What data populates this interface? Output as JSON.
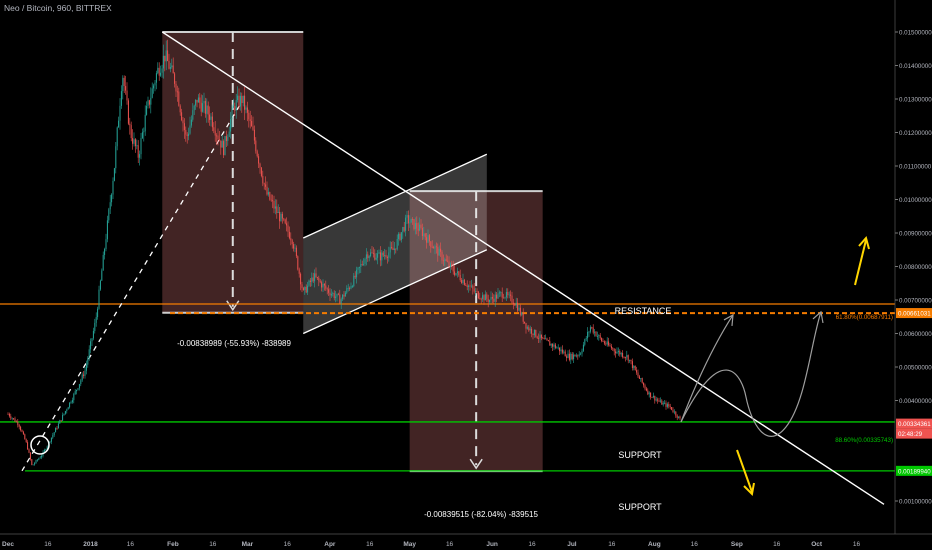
{
  "header": {
    "title": "Neo / Bitcoin, 960, BITTREX"
  },
  "colors": {
    "background": "#000000",
    "up": "#26a69a",
    "down": "#ef5350",
    "fib_line": "#f57c00",
    "support_line": "#00c800",
    "trend_line": "#ffffff",
    "arrow": "#ffd600",
    "projection": "#9e9e9e",
    "range_box": "#4e2a2a"
  },
  "chart_data": {
    "type": "candlestick",
    "symbol": "Neo / Bitcoin",
    "interval": "960",
    "exchange": "BITTREX",
    "x_ticks": [
      "Dec",
      "16",
      "2018",
      "16",
      "Feb",
      "16",
      "Mar",
      "16",
      "Apr",
      "16",
      "May",
      "16",
      "Jun",
      "16",
      "Jul",
      "16",
      "Aug",
      "16",
      "Sep",
      "16",
      "Oct",
      "16"
    ],
    "y_ticks": [
      "0.01500000",
      "0.01400000",
      "0.01300000",
      "0.01200000",
      "0.01100000",
      "0.01000000",
      "0.00900000",
      "0.00800000",
      "0.00700000",
      "0.00600000",
      "0.00500000",
      "0.00400000",
      "0.00100000"
    ],
    "price_labels": [
      {
        "text": "0.00661031",
        "color": "#f57c00"
      },
      {
        "text": "0.00334361",
        "color": "#ef5350"
      },
      {
        "text": "02:48:29",
        "color": "#ef5350"
      },
      {
        "text": "0.00189940",
        "color": "#00c800"
      }
    ],
    "price_path": [
      [
        "2017-12-01",
        0.0036
      ],
      [
        "2017-12-05",
        0.0033
      ],
      [
        "2017-12-08",
        0.0027
      ],
      [
        "2017-12-10",
        0.00205
      ],
      [
        "2017-12-14",
        0.0024
      ],
      [
        "2017-12-18",
        0.003
      ],
      [
        "2017-12-22",
        0.0036
      ],
      [
        "2017-12-26",
        0.0042
      ],
      [
        "2017-12-30",
        0.0049
      ],
      [
        "2018-01-03",
        0.0064
      ],
      [
        "2018-01-07",
        0.009
      ],
      [
        "2018-01-10",
        0.011
      ],
      [
        "2018-01-13",
        0.0138
      ],
      [
        "2018-01-16",
        0.012
      ],
      [
        "2018-01-19",
        0.0113
      ],
      [
        "2018-01-22",
        0.0126
      ],
      [
        "2018-01-26",
        0.0138
      ],
      [
        "2018-01-29",
        0.0143
      ],
      [
        "2018-02-02",
        0.0135
      ],
      [
        "2018-02-06",
        0.0118
      ],
      [
        "2018-02-10",
        0.013
      ],
      [
        "2018-02-15",
        0.0125
      ],
      [
        "2018-02-20",
        0.0115
      ],
      [
        "2018-02-24",
        0.0128
      ],
      [
        "2018-02-27",
        0.013
      ],
      [
        "2018-03-03",
        0.012
      ],
      [
        "2018-03-08",
        0.0102
      ],
      [
        "2018-03-13",
        0.0095
      ],
      [
        "2018-03-18",
        0.0088
      ],
      [
        "2018-03-22",
        0.0072
      ],
      [
        "2018-03-26",
        0.0077
      ],
      [
        "2018-03-31",
        0.0073
      ],
      [
        "2018-04-05",
        0.007
      ],
      [
        "2018-04-10",
        0.0076
      ],
      [
        "2018-04-15",
        0.0084
      ],
      [
        "2018-04-20",
        0.0083
      ],
      [
        "2018-04-25",
        0.0085
      ],
      [
        "2018-04-30",
        0.0094
      ],
      [
        "2018-05-05",
        0.0091
      ],
      [
        "2018-05-10",
        0.0086
      ],
      [
        "2018-05-16",
        0.008
      ],
      [
        "2018-05-21",
        0.0076
      ],
      [
        "2018-05-26",
        0.0072
      ],
      [
        "2018-05-31",
        0.007
      ],
      [
        "2018-06-05",
        0.0072
      ],
      [
        "2018-06-10",
        0.0069
      ],
      [
        "2018-06-14",
        0.0062
      ],
      [
        "2018-06-20",
        0.0058
      ],
      [
        "2018-06-25",
        0.0056
      ],
      [
        "2018-06-30",
        0.0053
      ],
      [
        "2018-07-04",
        0.0054
      ],
      [
        "2018-07-08",
        0.0062
      ],
      [
        "2018-07-12",
        0.0058
      ],
      [
        "2018-07-17",
        0.0055
      ],
      [
        "2018-07-22",
        0.0053
      ],
      [
        "2018-07-26",
        0.0047
      ],
      [
        "2018-07-30",
        0.0042
      ],
      [
        "2018-08-03",
        0.00395
      ],
      [
        "2018-08-07",
        0.0038
      ],
      [
        "2018-08-11",
        0.0034
      ]
    ],
    "annotations": [
      {
        "id": "range1",
        "text": "-0.00838989 (-55.93%) -838989"
      },
      {
        "id": "range2",
        "text": "-0.00839515 (-82.04%) -839515"
      },
      {
        "id": "resistance",
        "text": "RESISTANCE"
      },
      {
        "id": "support1",
        "text": "SUPPORT"
      },
      {
        "id": "support2",
        "text": "SUPPORT"
      },
      {
        "id": "fib618",
        "text": "61.80%(0.00687911)"
      },
      {
        "id": "fib886",
        "text": "88.60%(0.00335743)"
      }
    ],
    "xlabel": "",
    "ylabel": "",
    "grid": false
  }
}
